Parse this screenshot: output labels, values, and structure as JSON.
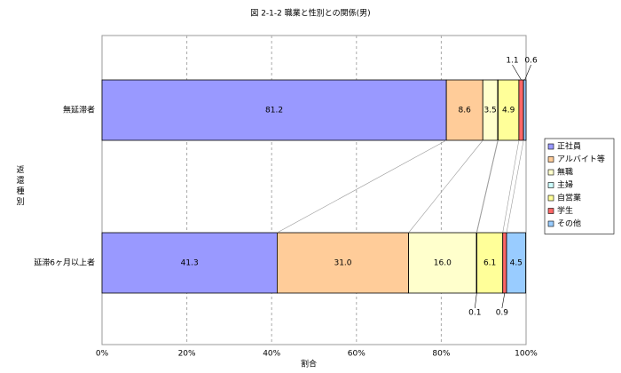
{
  "chart_data": {
    "type": "stacked-barh",
    "title": "図 2-1-2 職業と性別との関係(男)",
    "xlabel": "割合",
    "ylabel": "返還種別",
    "categories": [
      "無延滞者",
      "延滞6ヶ月以上者"
    ],
    "series": [
      {
        "name": "正社員",
        "color": "#9999ff",
        "values": [
          81.2,
          41.3
        ],
        "value_labels": [
          "81.2",
          "41.3"
        ]
      },
      {
        "name": "アルバイト等",
        "color": "#ffcc99",
        "values": [
          8.6,
          31.0
        ],
        "value_labels": [
          "8.6",
          "31.0"
        ]
      },
      {
        "name": "無職",
        "color": "#ffffcc",
        "values": [
          3.5,
          16.0
        ],
        "value_labels": [
          "3.5",
          "16.0"
        ]
      },
      {
        "name": "主婦",
        "color": "#ccffff",
        "values": [
          0.1,
          0.1
        ],
        "value_labels": [
          null,
          "0.1"
        ]
      },
      {
        "name": "自営業",
        "color": "#ffff99",
        "values": [
          4.9,
          6.1
        ],
        "value_labels": [
          "4.9",
          "6.1"
        ]
      },
      {
        "name": "学生",
        "color": "#ff6666",
        "values": [
          1.1,
          0.9
        ],
        "value_labels": [
          "1.1",
          "0.9"
        ]
      },
      {
        "name": "その他",
        "color": "#99ccff",
        "values": [
          0.6,
          4.5
        ],
        "value_labels": [
          "0.6",
          "4.5"
        ]
      }
    ],
    "xlim": [
      0,
      100
    ],
    "xticks": [
      {
        "value": 0,
        "label": "0%"
      },
      {
        "value": 20,
        "label": "20%"
      },
      {
        "value": 40,
        "label": "40%"
      },
      {
        "value": 60,
        "label": "60%"
      },
      {
        "value": 80,
        "label": "80%"
      },
      {
        "value": 100,
        "label": "100%"
      }
    ],
    "grid": true,
    "legend": "right"
  }
}
